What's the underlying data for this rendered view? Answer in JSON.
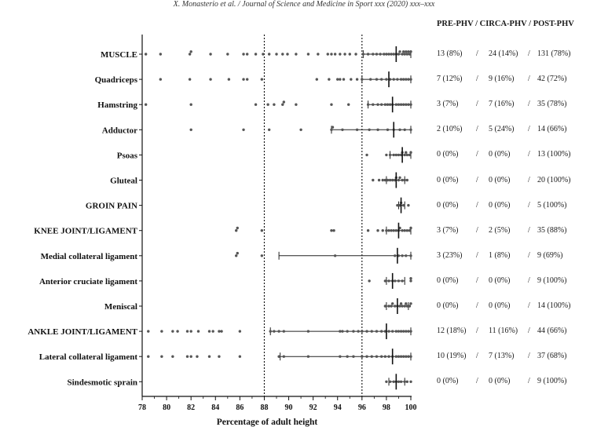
{
  "header": {
    "citation": "X. Monasterio et al. / Journal of Science and Medicine in Sport xxx (2020) xxx–xxx"
  },
  "table": {
    "column_header": "PRE-PHV / CIRCA-PHV / POST-PHV",
    "rows": [
      {
        "pre": "13 (8%)",
        "circa": "24 (14%)",
        "post": "131 (78%)"
      },
      {
        "pre": "7 (12%)",
        "circa": "9 (16%)",
        "post": "42 (72%)"
      },
      {
        "pre": "3 (7%)",
        "circa": "7 (16%)",
        "post": "35 (78%)"
      },
      {
        "pre": "2 (10%)",
        "circa": "5 (24%)",
        "post": "14 (66%)"
      },
      {
        "pre": "0 (0%)",
        "circa": "0 (0%)",
        "post": "13 (100%)"
      },
      {
        "pre": "0 (0%)",
        "circa": "0 (0%)",
        "post": "20 (100%)"
      },
      {
        "pre": "0 (0%)",
        "circa": "0 (0%)",
        "post": "5  (100%)"
      },
      {
        "pre": "3 (7%)",
        "circa": "2 (5%)",
        "post": "35 (88%)"
      },
      {
        "pre": "3 (23%)",
        "circa": "1 (8%)",
        "post": "9 (69%)"
      },
      {
        "pre": "0 (0%)",
        "circa": "0  (0%)",
        "post": "9 (100%)"
      },
      {
        "pre": "0 (0%)",
        "circa": "0  (0%)",
        "post": "14 (100%)"
      },
      {
        "pre": "12 (18%)",
        "circa": "11 (16%)",
        "post": "44 (66%)"
      },
      {
        "pre": "10 (19%)",
        "circa": "7 (13%)",
        "post": "37 (68%)"
      },
      {
        "pre": "0 (0%)",
        "circa": "0 (0%)",
        "post": "9 (100%)"
      }
    ]
  },
  "chart_data": {
    "type": "scatter",
    "xlabel": "Percentage of adult height",
    "xlim": [
      78,
      100
    ],
    "xticks": [
      78,
      80,
      82,
      84,
      86,
      88,
      90,
      92,
      94,
      96,
      98,
      100
    ],
    "reference_lines_x": [
      88,
      96
    ],
    "point_color": "#555555",
    "categories": [
      {
        "name": "MUSCLE",
        "median": 98.8,
        "range": [
          96.1,
          100
        ],
        "points": [
          78.3,
          79.5,
          81.9,
          82.0,
          83.6,
          85.0,
          86.3,
          86.6,
          87.3,
          87.9,
          88.4,
          89.0,
          89.5,
          89.9,
          90.6,
          91.6,
          92.4,
          93.2,
          93.5,
          93.8,
          94.2,
          94.6,
          95.0,
          95.5,
          96.1,
          96.5,
          96.9,
          97.2,
          97.5,
          97.8,
          98.0,
          98.2,
          98.4,
          98.6,
          98.8,
          99.0,
          99.1,
          99.3,
          99.4,
          99.5,
          99.6,
          99.7,
          99.8,
          99.9,
          100
        ]
      },
      {
        "name": "Quadriceps",
        "median": 98.2,
        "range": [
          96.0,
          100
        ],
        "points": [
          79.5,
          81.9,
          83.6,
          85.1,
          86.3,
          86.6,
          87.8,
          92.3,
          93.3,
          94.0,
          94.2,
          94.5,
          95.1,
          95.6,
          96.0,
          96.7,
          97.2,
          97.6,
          98.0,
          98.3,
          98.6,
          98.9,
          99.2,
          99.4,
          99.6,
          99.8,
          100
        ]
      },
      {
        "name": "Hamstring",
        "median": 98.5,
        "range": [
          96.5,
          100
        ],
        "points": [
          78.3,
          82.0,
          87.3,
          88.3,
          88.8,
          89.5,
          89.6,
          90.6,
          93.5,
          94.9,
          96.5,
          96.9,
          97.3,
          97.6,
          97.9,
          98.1,
          98.3,
          98.5,
          98.8,
          99.0,
          99.2,
          99.4,
          99.6,
          99.8,
          100
        ]
      },
      {
        "name": "Adductor",
        "median": 98.6,
        "range": [
          93.5,
          100
        ],
        "points": [
          82.0,
          86.3,
          88.4,
          91.0,
          93.5,
          93.6,
          94.4,
          95.6,
          96.6,
          97.3,
          98.1,
          98.6,
          99.1,
          99.5,
          100
        ]
      },
      {
        "name": "Psoas",
        "median": 99.3,
        "range": [
          98.3,
          100
        ],
        "points": [
          96.4,
          98.0,
          98.3,
          98.6,
          98.8,
          99.0,
          99.2,
          99.3,
          99.5,
          99.6,
          99.7,
          99.9,
          100
        ]
      },
      {
        "name": "Gluteal",
        "median": 98.8,
        "range": [
          98.0,
          99.5
        ],
        "points": [
          96.9,
          97.4,
          97.7,
          97.9,
          98.1,
          98.3,
          98.5,
          98.7,
          98.8,
          99.0,
          99.1,
          99.3,
          99.5,
          99.7
        ]
      },
      {
        "name": "GROIN PAIN",
        "median": 99.2,
        "range": [
          99.0,
          99.5
        ],
        "points": [
          98.9,
          99.1,
          99.2,
          99.4,
          99.8
        ]
      },
      {
        "name": "KNEE JOINT/LIGAMENT",
        "median": 99.0,
        "range": [
          98.0,
          100
        ],
        "points": [
          85.7,
          85.8,
          87.8,
          93.5,
          93.7,
          96.5,
          97.3,
          97.7,
          98.0,
          98.2,
          98.4,
          98.6,
          98.8,
          99.0,
          99.1,
          99.3,
          99.5,
          99.7,
          99.9,
          100
        ]
      },
      {
        "name": "Medial collateral ligament",
        "median": 98.9,
        "range": [
          89.2,
          100
        ],
        "points": [
          85.7,
          85.8,
          87.8,
          93.8,
          98.7,
          99.0,
          99.3,
          99.6,
          100
        ]
      },
      {
        "name": "Anterior cruciate ligament",
        "median": 98.5,
        "range": [
          98.0,
          99.5
        ],
        "points": [
          96.6,
          97.9,
          98.2,
          98.5,
          98.7,
          99.0,
          99.3,
          100,
          100
        ]
      },
      {
        "name": "Meniscal",
        "median": 98.9,
        "range": [
          98.0,
          99.8
        ],
        "points": [
          97.9,
          98.2,
          98.5,
          98.7,
          98.9,
          99.1,
          99.3,
          99.5,
          99.7,
          99.9,
          100,
          98.4,
          99.2,
          99.6
        ]
      },
      {
        "name": "ANKLE JOINT/LIGAMENT",
        "median": 98.0,
        "range": [
          88.5,
          100
        ],
        "points": [
          78.5,
          79.6,
          80.5,
          80.9,
          81.7,
          82.0,
          82.6,
          83.5,
          83.8,
          84.3,
          84.5,
          86.0,
          88.5,
          88.8,
          89.2,
          89.6,
          91.6,
          94.2,
          94.4,
          94.8,
          95.3,
          95.7,
          96.0,
          96.4,
          96.8,
          97.2,
          97.6,
          97.9,
          98.2,
          98.5,
          98.8,
          99.0,
          99.2,
          99.4,
          99.6,
          99.8,
          100
        ]
      },
      {
        "name": "Lateral collateral ligament",
        "median": 98.5,
        "range": [
          89.3,
          100
        ],
        "points": [
          78.5,
          79.6,
          80.5,
          81.7,
          82.0,
          82.5,
          83.5,
          84.3,
          86.0,
          89.2,
          89.6,
          91.6,
          94.2,
          94.8,
          95.3,
          96.0,
          96.4,
          96.8,
          97.2,
          97.6,
          97.9,
          98.2,
          98.5,
          98.8,
          99.0,
          99.2,
          99.4,
          99.6,
          99.8,
          100
        ]
      },
      {
        "name": "Sindesmotic sprain",
        "median": 98.8,
        "range": [
          98.2,
          99.5
        ],
        "points": [
          98.0,
          98.3,
          98.6,
          98.8,
          99.0,
          99.2,
          99.5,
          99.7,
          100
        ]
      }
    ]
  }
}
